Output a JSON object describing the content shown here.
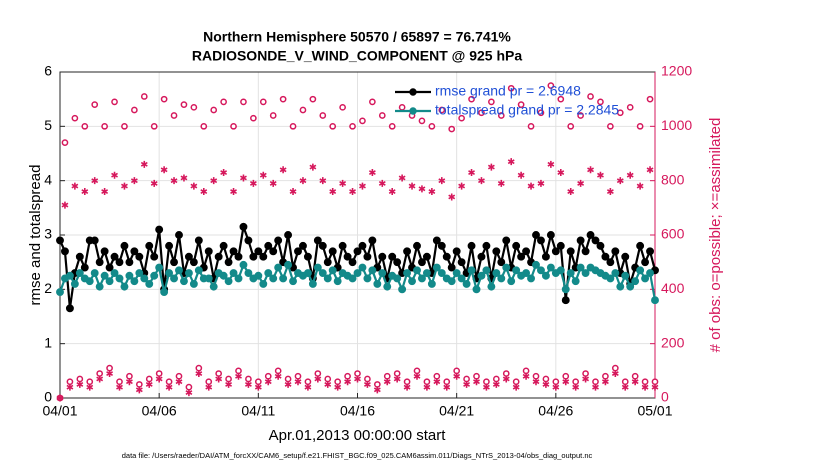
{
  "chart_data": {
    "type": "line",
    "title": "Northern Hemisphere 50570 / 65897 = 76.741%",
    "subtitle": "RADIOSONDE_V_WIND_COMPONENT @ 925 hPa",
    "y_label": "rmse and totalspread",
    "y2_label": "# of obs: o=possible; ×=assimilated",
    "x_label": "Apr.01,2013 00:00:00 start",
    "footnote": "data file: /Users/raeder/DAI/ATM_forcXX/CAM6_setup/f.e21.FHIST_BGC.f09_025.CAM6assim.011/Diags_NTrS_2013-04/obs_diag_output.nc",
    "grid": true,
    "legend": "upper right",
    "xlim": [
      0,
      30
    ],
    "xticks": [
      {
        "value": 0,
        "label": "04/01"
      },
      {
        "value": 5,
        "label": "04/06"
      },
      {
        "value": 10,
        "label": "04/11"
      },
      {
        "value": 15,
        "label": "04/16"
      },
      {
        "value": 20,
        "label": "04/21"
      },
      {
        "value": 25,
        "label": "04/26"
      },
      {
        "value": 30,
        "label": "05/01"
      }
    ],
    "ylim": [
      0,
      6
    ],
    "yticks": [
      0,
      1,
      2,
      3,
      4,
      5,
      6
    ],
    "y2lim": [
      0,
      1200
    ],
    "y2ticks": [
      0,
      200,
      400,
      600,
      800,
      1000,
      1200
    ],
    "y2color": "#d6185c",
    "x": [
      0,
      0.25,
      0.5,
      0.75,
      1,
      1.25,
      1.5,
      1.75,
      2,
      2.25,
      2.5,
      2.75,
      3,
      3.25,
      3.5,
      3.75,
      4,
      4.25,
      4.5,
      4.75,
      5,
      5.25,
      5.5,
      5.75,
      6,
      6.25,
      6.5,
      6.75,
      7,
      7.25,
      7.5,
      7.75,
      8,
      8.25,
      8.5,
      8.75,
      9,
      9.25,
      9.5,
      9.75,
      10,
      10.25,
      10.5,
      10.75,
      11,
      11.25,
      11.5,
      11.75,
      12,
      12.25,
      12.5,
      12.75,
      13,
      13.25,
      13.5,
      13.75,
      14,
      14.25,
      14.5,
      14.75,
      15,
      15.25,
      15.5,
      15.75,
      16,
      16.25,
      16.5,
      16.75,
      17,
      17.25,
      17.5,
      17.75,
      18,
      18.25,
      18.5,
      18.75,
      19,
      19.25,
      19.5,
      19.75,
      20,
      20.25,
      20.5,
      20.75,
      21,
      21.25,
      21.5,
      21.75,
      22,
      22.25,
      22.5,
      22.75,
      23,
      23.25,
      23.5,
      23.75,
      24,
      24.25,
      24.5,
      24.75,
      25,
      25.25,
      25.5,
      25.75,
      26,
      26.25,
      26.5,
      26.75,
      27,
      27.25,
      27.5,
      27.75,
      28,
      28.25,
      28.5,
      28.75,
      29,
      29.25,
      29.5,
      29.75,
      30
    ],
    "series": [
      {
        "name": "rmse grand pr = 2.6948",
        "color": "#000000",
        "marker": "o",
        "filled": true,
        "line": true,
        "values": [
          2.9,
          2.7,
          1.65,
          2.3,
          2.6,
          2.4,
          2.9,
          2.9,
          2.5,
          2.7,
          2.4,
          2.6,
          2.5,
          2.8,
          2.5,
          2.7,
          2.6,
          2.3,
          2.8,
          2.6,
          3.1,
          2.0,
          2.8,
          2.5,
          3.0,
          2.3,
          2.6,
          2.5,
          2.9,
          2.4,
          2.7,
          2.2,
          2.6,
          2.8,
          2.5,
          2.7,
          2.6,
          3.15,
          2.9,
          2.6,
          2.7,
          2.6,
          2.8,
          2.7,
          2.9,
          2.5,
          3.0,
          2.4,
          2.7,
          2.8,
          2.6,
          2.2,
          2.9,
          2.8,
          2.5,
          2.7,
          2.4,
          2.8,
          2.6,
          2.5,
          2.7,
          2.8,
          2.6,
          2.9,
          2.4,
          2.6,
          2.2,
          2.6,
          2.5,
          2.3,
          2.7,
          2.4,
          2.8,
          2.5,
          2.6,
          2.3,
          2.9,
          2.8,
          2.6,
          2.4,
          2.7,
          2.5,
          2.3,
          2.8,
          2.2,
          2.6,
          2.8,
          2.2,
          2.7,
          2.5,
          2.9,
          2.4,
          2.8,
          2.6,
          2.7,
          2.5,
          3.0,
          2.9,
          2.6,
          3.0,
          2.7,
          2.8,
          1.8,
          2.7,
          2.4,
          2.9,
          2.7,
          3.0,
          2.9,
          2.8,
          2.6,
          2.5,
          2.7,
          2.3,
          2.6,
          2.1,
          2.4,
          2.8,
          2.5,
          2.7,
          2.35
        ]
      },
      {
        "name": "totalspread grand pr = 2.2845",
        "color": "#138a8a",
        "marker": "o",
        "filled": true,
        "line": true,
        "values": [
          1.95,
          2.2,
          2.25,
          2.1,
          2.3,
          2.2,
          2.15,
          2.3,
          2.05,
          2.25,
          2.15,
          2.3,
          2.2,
          2.05,
          2.25,
          2.15,
          2.3,
          2.2,
          2.1,
          2.25,
          2.4,
          1.95,
          2.3,
          2.2,
          2.35,
          2.15,
          2.3,
          2.1,
          2.35,
          2.2,
          2.2,
          2.05,
          2.3,
          2.25,
          2.15,
          2.3,
          2.2,
          2.45,
          2.3,
          2.2,
          2.25,
          2.1,
          2.3,
          2.2,
          2.4,
          2.2,
          2.45,
          2.15,
          2.3,
          2.25,
          2.3,
          2.1,
          2.4,
          2.3,
          2.2,
          2.35,
          2.15,
          2.3,
          2.25,
          2.2,
          2.3,
          2.4,
          2.2,
          2.35,
          2.1,
          2.3,
          2.05,
          2.25,
          2.2,
          2.0,
          2.3,
          2.15,
          2.35,
          2.2,
          2.3,
          2.1,
          2.4,
          2.3,
          2.2,
          2.15,
          2.3,
          2.2,
          2.1,
          2.35,
          2.0,
          2.25,
          2.35,
          2.05,
          2.3,
          2.2,
          2.4,
          2.15,
          2.35,
          2.25,
          2.3,
          2.2,
          2.45,
          2.35,
          2.25,
          2.4,
          2.3,
          2.35,
          2.0,
          2.3,
          2.15,
          2.4,
          2.3,
          2.4,
          2.35,
          2.3,
          2.25,
          2.2,
          2.3,
          2.05,
          2.25,
          2.05,
          2.15,
          2.35,
          2.2,
          2.3,
          1.8
        ]
      },
      {
        "color": "#d6185c",
        "marker": "o",
        "filled": false,
        "line": false,
        "axis": "y2",
        "values": [
          0,
          940,
          60,
          1030,
          70,
          1000,
          60,
          1080,
          90,
          1000,
          110,
          1090,
          60,
          1000,
          80,
          1060,
          50,
          1110,
          70,
          1000,
          90,
          1100,
          60,
          1040,
          80,
          1080,
          40,
          1070,
          110,
          1000,
          60,
          1060,
          90,
          1090,
          70,
          1000,
          100,
          1090,
          70,
          1030,
          60,
          1090,
          80,
          1040,
          100,
          1100,
          70,
          1000,
          80,
          1060,
          60,
          1100,
          90,
          1040,
          70,
          1000,
          60,
          1070,
          80,
          1000,
          90,
          1020,
          70,
          1090,
          50,
          1040,
          80,
          1000,
          90,
          1070,
          60,
          1040,
          100,
          1020,
          60,
          1000,
          80,
          1060,
          60,
          990,
          100,
          1030,
          70,
          1100,
          80,
          1050,
          60,
          1090,
          70,
          1040,
          90,
          1140,
          60,
          1080,
          100,
          1000,
          80,
          1050,
          70,
          1150,
          60,
          1100,
          80,
          1000,
          60,
          1040,
          90,
          1110,
          60,
          1090,
          80,
          1000,
          110,
          1050,
          60,
          1070,
          80,
          1000,
          60,
          1100,
          60
        ]
      },
      {
        "color": "#d6185c",
        "marker": "*",
        "filled": false,
        "line": false,
        "axis": "y2",
        "values": [
          0,
          710,
          40,
          780,
          50,
          760,
          40,
          800,
          70,
          760,
          90,
          820,
          40,
          780,
          60,
          800,
          30,
          860,
          50,
          790,
          70,
          840,
          40,
          800,
          60,
          810,
          20,
          780,
          90,
          760,
          40,
          800,
          70,
          830,
          50,
          760,
          80,
          810,
          50,
          790,
          40,
          820,
          60,
          790,
          80,
          840,
          50,
          760,
          60,
          800,
          40,
          850,
          70,
          800,
          50,
          760,
          40,
          790,
          60,
          760,
          70,
          780,
          50,
          830,
          30,
          790,
          60,
          760,
          70,
          810,
          40,
          780,
          80,
          770,
          40,
          760,
          60,
          800,
          40,
          740,
          80,
          780,
          50,
          830,
          60,
          800,
          40,
          850,
          50,
          790,
          70,
          870,
          40,
          820,
          80,
          780,
          60,
          790,
          50,
          860,
          40,
          830,
          60,
          760,
          40,
          790,
          70,
          840,
          40,
          820,
          60,
          760,
          90,
          800,
          40,
          820,
          60,
          780,
          40,
          840,
          40
        ]
      }
    ]
  }
}
